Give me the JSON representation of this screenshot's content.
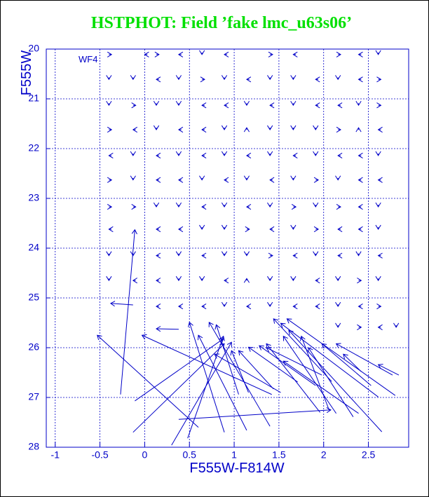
{
  "chart_data": {
    "type": "vector",
    "title": "HSTPHOT: Field ’fake lmc_u63s06’",
    "annotation": "WF4",
    "x_label": "F555W-F814W",
    "y_label": "F555W",
    "color": "#0000c8",
    "title_color": "#00e000",
    "grid": true,
    "xlim": [
      -1.1,
      2.95
    ],
    "ylim": [
      28,
      20
    ],
    "xticks": [
      -1,
      -0.5,
      0,
      0.5,
      1,
      1.5,
      2,
      2.5
    ],
    "yticks": [
      20,
      21,
      22,
      23,
      24,
      25,
      26,
      27,
      28
    ],
    "vectors": [
      [
        -0.4,
        20.11,
        -0.37,
        20.11
      ],
      [
        0.03,
        20.11,
        0,
        20.11
      ],
      [
        0.13,
        20.11,
        0.16,
        20.11
      ],
      [
        0.41,
        20.11,
        0.38,
        20.11
      ],
      [
        0.64,
        20.07,
        0.64,
        20.11
      ],
      [
        0.92,
        20.11,
        0.89,
        20.11
      ],
      [
        1.4,
        20.11,
        1.43,
        20.11
      ],
      [
        1.69,
        20.11,
        1.66,
        20.11
      ],
      [
        2.16,
        20.11,
        2.19,
        20.11
      ],
      [
        2.42,
        20.11,
        2.39,
        20.11
      ],
      [
        2.61,
        20.07,
        2.61,
        20.11
      ],
      [
        -0.4,
        20.57,
        -0.4,
        20.61
      ],
      [
        -0.13,
        20.57,
        -0.13,
        20.61
      ],
      [
        0.16,
        20.61,
        0.13,
        20.61
      ],
      [
        0.38,
        20.57,
        0.38,
        20.61
      ],
      [
        0.64,
        20.61,
        0.67,
        20.61
      ],
      [
        0.89,
        20.57,
        0.89,
        20.61
      ],
      [
        1.17,
        20.61,
        1.14,
        20.61
      ],
      [
        1.4,
        20.57,
        1.4,
        20.61
      ],
      [
        1.66,
        20.57,
        1.66,
        20.61
      ],
      [
        1.94,
        20.61,
        1.91,
        20.61
      ],
      [
        2.16,
        20.57,
        2.16,
        20.61
      ],
      [
        2.42,
        20.61,
        2.39,
        20.61
      ],
      [
        2.61,
        20.61,
        2.64,
        20.61
      ],
      [
        -0.4,
        21.09,
        -0.4,
        21.13
      ],
      [
        -0.13,
        21.13,
        -0.1,
        21.13
      ],
      [
        0.13,
        21.09,
        0.13,
        21.13
      ],
      [
        0.38,
        21.09,
        0.38,
        21.13
      ],
      [
        0.67,
        21.13,
        0.64,
        21.13
      ],
      [
        0.92,
        21.13,
        0.89,
        21.13
      ],
      [
        1.14,
        21.09,
        1.14,
        21.13
      ],
      [
        1.43,
        21.13,
        1.4,
        21.13
      ],
      [
        1.66,
        21.09,
        1.66,
        21.13
      ],
      [
        1.94,
        21.13,
        1.91,
        21.13
      ],
      [
        2.19,
        21.13,
        2.16,
        21.13
      ],
      [
        2.39,
        21.09,
        2.39,
        21.13
      ],
      [
        2.61,
        21.13,
        2.64,
        21.13
      ],
      [
        -0.4,
        21.62,
        -0.37,
        21.62
      ],
      [
        -0.1,
        21.62,
        -0.13,
        21.62
      ],
      [
        0.13,
        21.58,
        0.13,
        21.62
      ],
      [
        0.41,
        21.62,
        0.38,
        21.62
      ],
      [
        0.67,
        21.62,
        0.64,
        21.62
      ],
      [
        0.89,
        21.58,
        0.89,
        21.62
      ],
      [
        1.14,
        21.62,
        1.14,
        21.58
      ],
      [
        1.4,
        21.58,
        1.4,
        21.62
      ],
      [
        1.66,
        21.58,
        1.66,
        21.62
      ],
      [
        1.91,
        21.58,
        1.91,
        21.62
      ],
      [
        2.16,
        21.62,
        2.19,
        21.62
      ],
      [
        2.39,
        21.62,
        2.39,
        21.58
      ],
      [
        2.64,
        21.62,
        2.61,
        21.62
      ],
      [
        -0.37,
        22.14,
        -0.4,
        22.14
      ],
      [
        -0.13,
        22.1,
        -0.13,
        22.14
      ],
      [
        0.16,
        22.14,
        0.13,
        22.14
      ],
      [
        0.38,
        22.1,
        0.38,
        22.14
      ],
      [
        0.67,
        22.14,
        0.64,
        22.14
      ],
      [
        0.89,
        22.1,
        0.89,
        22.14
      ],
      [
        1.17,
        22.14,
        1.14,
        22.14
      ],
      [
        1.4,
        22.1,
        1.4,
        22.14
      ],
      [
        1.69,
        22.14,
        1.66,
        22.14
      ],
      [
        1.91,
        22.1,
        1.91,
        22.14
      ],
      [
        2.19,
        22.14,
        2.16,
        22.14
      ],
      [
        2.42,
        22.14,
        2.39,
        22.14
      ],
      [
        2.61,
        22.1,
        2.61,
        22.14
      ],
      [
        -0.4,
        22.63,
        -0.37,
        22.63
      ],
      [
        -0.13,
        22.59,
        -0.13,
        22.63
      ],
      [
        0.16,
        22.63,
        0.13,
        22.63
      ],
      [
        0.41,
        22.63,
        0.38,
        22.63
      ],
      [
        0.64,
        22.59,
        0.64,
        22.63
      ],
      [
        0.92,
        22.63,
        0.89,
        22.63
      ],
      [
        1.14,
        22.59,
        1.14,
        22.63
      ],
      [
        1.43,
        22.63,
        1.4,
        22.63
      ],
      [
        1.66,
        22.59,
        1.66,
        22.63
      ],
      [
        1.91,
        22.63,
        1.94,
        22.63
      ],
      [
        2.16,
        22.59,
        2.16,
        22.63
      ],
      [
        2.42,
        22.63,
        2.39,
        22.63
      ],
      [
        2.64,
        22.63,
        2.61,
        22.63
      ],
      [
        -0.4,
        23.17,
        -0.37,
        23.17
      ],
      [
        -0.13,
        23.17,
        -0.1,
        23.17
      ],
      [
        0.13,
        23.13,
        0.13,
        23.17
      ],
      [
        0.38,
        23.13,
        0.38,
        23.17
      ],
      [
        0.67,
        23.17,
        0.64,
        23.17
      ],
      [
        0.89,
        23.13,
        0.89,
        23.17
      ],
      [
        1.17,
        23.17,
        1.14,
        23.17
      ],
      [
        1.4,
        23.13,
        1.4,
        23.17
      ],
      [
        1.66,
        23.17,
        1.69,
        23.17
      ],
      [
        1.91,
        23.13,
        1.91,
        23.17
      ],
      [
        2.16,
        23.17,
        2.19,
        23.17
      ],
      [
        2.42,
        23.17,
        2.39,
        23.17
      ],
      [
        2.61,
        23.13,
        2.61,
        23.17
      ],
      [
        -0.37,
        23.62,
        -0.4,
        23.62
      ],
      [
        0.16,
        23.62,
        0.13,
        23.62
      ],
      [
        0.41,
        23.62,
        0.38,
        23.62
      ],
      [
        0.64,
        23.58,
        0.64,
        23.62
      ],
      [
        0.89,
        23.58,
        0.89,
        23.62
      ],
      [
        1.14,
        23.62,
        1.17,
        23.62
      ],
      [
        1.43,
        23.62,
        1.4,
        23.62
      ],
      [
        1.66,
        23.58,
        1.66,
        23.62
      ],
      [
        1.91,
        23.62,
        1.94,
        23.62
      ],
      [
        2.19,
        23.62,
        2.16,
        23.62
      ],
      [
        2.42,
        23.62,
        2.39,
        23.62
      ],
      [
        2.61,
        23.58,
        2.61,
        23.62
      ],
      [
        -0.4,
        24.11,
        -0.4,
        24.15
      ],
      [
        -0.13,
        24.11,
        -0.13,
        24.15
      ],
      [
        0.16,
        24.15,
        0.13,
        24.15
      ],
      [
        0.38,
        24.11,
        0.38,
        24.15
      ],
      [
        0.67,
        24.15,
        0.64,
        24.15
      ],
      [
        0.89,
        24.11,
        0.89,
        24.15
      ],
      [
        1.14,
        24.11,
        1.14,
        24.15
      ],
      [
        1.4,
        24.15,
        1.43,
        24.15
      ],
      [
        1.69,
        24.15,
        1.66,
        24.15
      ],
      [
        1.91,
        24.11,
        1.91,
        24.15
      ],
      [
        2.19,
        24.15,
        2.16,
        24.15
      ],
      [
        2.39,
        24.11,
        2.39,
        24.15
      ],
      [
        2.64,
        24.15,
        2.61,
        24.15
      ],
      [
        -0.4,
        24.61,
        -0.4,
        24.65
      ],
      [
        -0.1,
        24.65,
        -0.13,
        24.65
      ],
      [
        0.16,
        24.65,
        0.13,
        24.65
      ],
      [
        0.38,
        24.61,
        0.38,
        24.65
      ],
      [
        0.64,
        24.61,
        0.64,
        24.65
      ],
      [
        0.92,
        24.65,
        0.89,
        24.65
      ],
      [
        1.14,
        24.65,
        1.14,
        24.61
      ],
      [
        1.4,
        24.61,
        1.4,
        24.65
      ],
      [
        1.66,
        24.61,
        1.66,
        24.65
      ],
      [
        1.94,
        24.65,
        1.91,
        24.65
      ],
      [
        2.16,
        24.61,
        2.16,
        24.65
      ],
      [
        2.39,
        24.65,
        2.42,
        24.65
      ],
      [
        2.61,
        24.61,
        2.61,
        24.65
      ],
      [
        0.16,
        25.17,
        0.13,
        25.17
      ],
      [
        0.41,
        25.17,
        0.38,
        25.17
      ],
      [
        0.67,
        25.17,
        0.64,
        25.17
      ],
      [
        0.89,
        25.13,
        0.89,
        25.17
      ],
      [
        1.17,
        25.17,
        1.14,
        25.17
      ],
      [
        1.4,
        25.13,
        1.4,
        25.17
      ],
      [
        1.69,
        25.17,
        1.66,
        25.17
      ],
      [
        1.94,
        25.17,
        1.91,
        25.17
      ],
      [
        2.16,
        25.13,
        2.16,
        25.17
      ],
      [
        2.42,
        25.17,
        2.39,
        25.17
      ],
      [
        2.61,
        25.17,
        2.64,
        25.17
      ],
      [
        2.16,
        25.55,
        2.16,
        25.59
      ],
      [
        2.39,
        25.59,
        2.42,
        25.59
      ],
      [
        2.64,
        25.59,
        2.61,
        25.59
      ],
      [
        2.81,
        25.55,
        2.81,
        25.59
      ],
      [
        -0.27,
        26.94,
        -0.11,
        23.63
      ],
      [
        -0.13,
        25.14,
        -0.38,
        25.11
      ],
      [
        0.38,
        25.63,
        0.13,
        25.62
      ],
      [
        0.6,
        27.6,
        -0.53,
        25.75
      ],
      [
        1.42,
        26.94,
        -0.03,
        25.75
      ],
      [
        -0.11,
        27.07,
        0.88,
        25.82
      ],
      [
        -0.13,
        27.7,
        0.89,
        25.92
      ],
      [
        0.3,
        27.96,
        0.97,
        25.89
      ],
      [
        0.48,
        27.82,
        0.88,
        25.77
      ],
      [
        0.38,
        27.44,
        2.08,
        27.25
      ],
      [
        0.89,
        27.7,
        0.5,
        25.49
      ],
      [
        1.14,
        27.66,
        0.6,
        25.75
      ],
      [
        1.4,
        27.58,
        0.72,
        25.49
      ],
      [
        1.05,
        26.94,
        0.8,
        25.54
      ],
      [
        2.09,
        26.68,
        1.44,
        25.42
      ],
      [
        2.61,
        26.99,
        1.52,
        25.51
      ],
      [
        2.8,
        26.96,
        1.59,
        25.42
      ],
      [
        2.65,
        27.69,
        1.61,
        25.65
      ],
      [
        2.14,
        27.32,
        1.55,
        25.77
      ],
      [
        1.96,
        27.3,
        1.36,
        25.92
      ],
      [
        2.39,
        27.32,
        1.55,
        26.27
      ],
      [
        2.06,
        27.25,
        1.75,
        25.77
      ],
      [
        2.33,
        27.39,
        1.83,
        26.0
      ],
      [
        2.53,
        26.76,
        1.98,
        25.92
      ],
      [
        2.77,
        26.55,
        2.14,
        25.92
      ],
      [
        2.84,
        26.55,
        2.61,
        26.34
      ],
      [
        2.42,
        26.48,
        2.22,
        26.13
      ],
      [
        1.16,
        26.9,
        0.97,
        26.06
      ],
      [
        1.44,
        26.83,
        1.05,
        26.06
      ],
      [
        1.71,
        26.69,
        1.16,
        25.99
      ],
      [
        1.91,
        26.76,
        1.28,
        25.96
      ],
      [
        1.98,
        26.55,
        1.36,
        26.0
      ],
      [
        1.52,
        26.9,
        0.78,
        26.13
      ]
    ]
  }
}
